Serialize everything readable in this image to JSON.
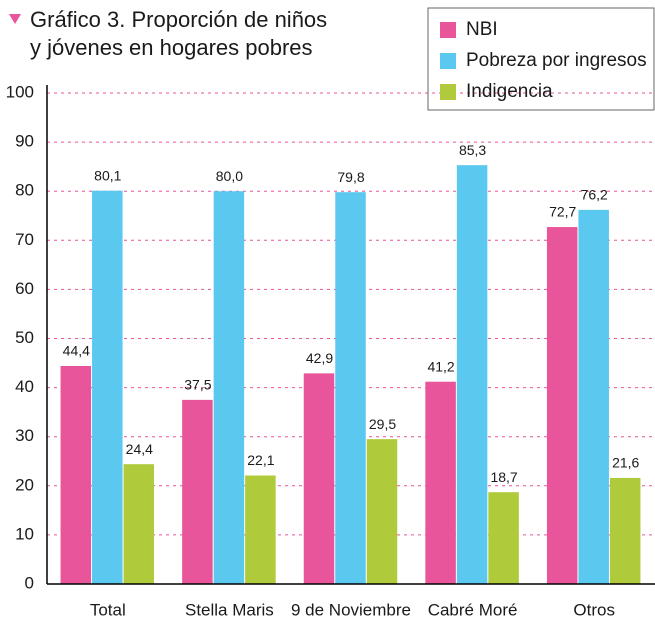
{
  "chart_data": {
    "type": "bar",
    "title": "Gráfico 3.  Proporción de niños",
    "subtitle": "y jóvenes en hogares pobres",
    "categories": [
      "Total",
      "Stella Maris",
      "9 de Noviembre",
      "Cabré Moré",
      "Otros"
    ],
    "series": [
      {
        "name": "NBI",
        "color": "#e8559a",
        "values": [
          44.4,
          37.5,
          42.9,
          41.2,
          72.7
        ],
        "value_labels": [
          "44,4",
          "37,5",
          "42,9",
          "41,2",
          "72,7"
        ]
      },
      {
        "name": "Pobreza por ingresos",
        "color": "#5bc8f0",
        "values": [
          80.1,
          80.0,
          79.8,
          85.3,
          76.2
        ],
        "value_labels": [
          "80,1",
          "80,0",
          "79,8",
          "85,3",
          "76,2"
        ]
      },
      {
        "name": "Indigencia",
        "color": "#afca3a",
        "values": [
          24.4,
          22.1,
          29.5,
          18.7,
          21.6
        ],
        "value_labels": [
          "24,4",
          "22,1",
          "29,5",
          "18,7",
          "21,6"
        ]
      }
    ],
    "ylim": [
      0,
      100
    ],
    "yticks": [
      0,
      10,
      20,
      30,
      40,
      50,
      60,
      70,
      80,
      90,
      100
    ],
    "grid": true,
    "legend": "upper right"
  }
}
